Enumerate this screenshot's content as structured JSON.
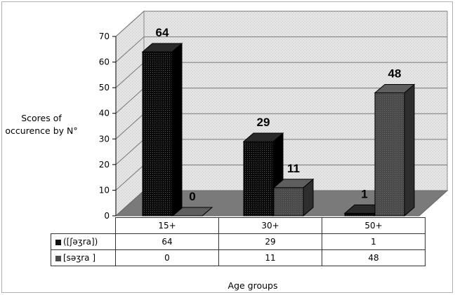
{
  "chart_data": {
    "type": "bar",
    "categories": [
      "15+",
      "30+",
      "50+"
    ],
    "series": [
      {
        "name": "([ʃəʒra])",
        "values": [
          64,
          29,
          1
        ],
        "color": "#111111"
      },
      {
        "name": "[səʒra ]",
        "values": [
          0,
          11,
          48
        ],
        "color": "#4a4a4a"
      }
    ],
    "ylabel_lines": [
      "Scores of",
      "occurence by N°"
    ],
    "xlabel": "Age groups",
    "ylim": [
      0,
      70
    ],
    "yticks": [
      0,
      10,
      20,
      30,
      40,
      50,
      60,
      70
    ],
    "grid": true,
    "legend_position": "data table below chart"
  }
}
